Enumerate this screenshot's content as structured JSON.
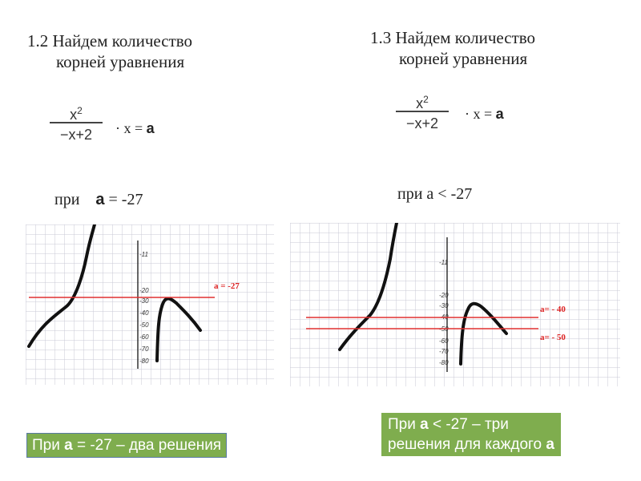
{
  "left": {
    "heading_line1": "1.2  Найдем количество",
    "heading_line2": "корней уравнения",
    "fraction": {
      "numerator": "x",
      "numerator_power": "2",
      "denominator": "−x+2"
    },
    "equation_rest": "· x = ",
    "equation_var": "a",
    "condition_prefix": "при",
    "condition_var": "a",
    "condition_rest": " = -27",
    "graph": {
      "y_ticks": [
        "-11",
        "-20",
        "-30",
        "-40",
        "-50",
        "-60",
        "-70",
        "-80"
      ],
      "line_labels": [
        "a = -27"
      ]
    },
    "note_prefix": "При ",
    "note_var": "а",
    "note_rest": " = -27 – два решения"
  },
  "right": {
    "heading_line1": "1.3  Найдем количество",
    "heading_line2": "корней уравнения",
    "fraction": {
      "numerator": "x",
      "numerator_power": "2",
      "denominator": "−x+2"
    },
    "equation_rest": "· x = ",
    "equation_var": "a",
    "condition": "при а < -27",
    "graph": {
      "y_ticks": [
        "-11",
        "-20",
        "-30",
        "-40",
        "-50",
        "-60",
        "-70",
        "-80"
      ],
      "line_labels": [
        "a= - 40",
        "a= - 50"
      ]
    },
    "note_line1_prefix": "При  ",
    "note_line1_var": "а",
    "note_line1_rest": " < -27 – три",
    "note_line2_text": "решения для каждого ",
    "note_line2_var": "а"
  },
  "colors": {
    "green_box": "#7fad4e",
    "red_line": "#e03030",
    "curve": "#111111",
    "grid": "#c9c9d6"
  }
}
